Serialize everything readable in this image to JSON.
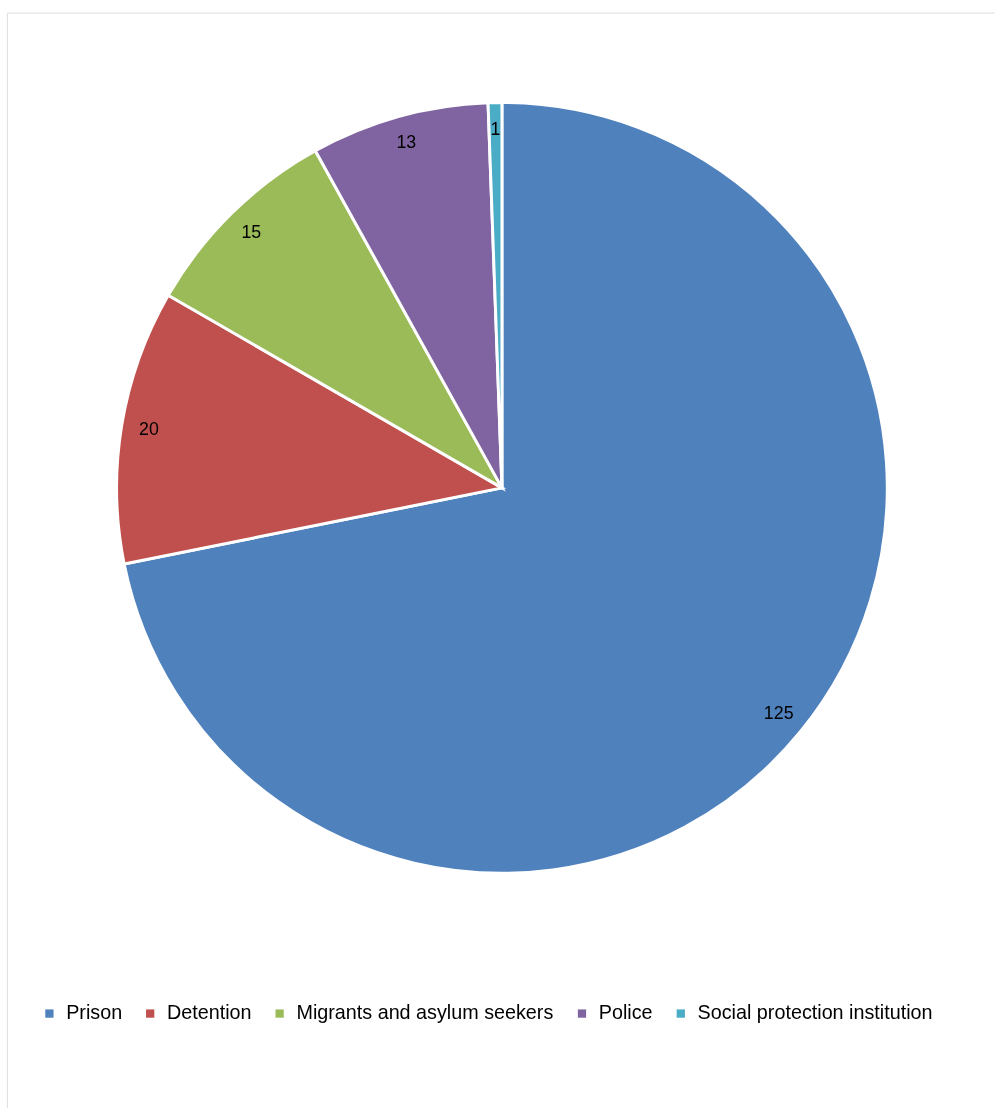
{
  "chart_data": {
    "type": "pie",
    "categories": [
      "Prison",
      "Detention",
      "Migrants and asylum seekers",
      "Police",
      "Social protection institution"
    ],
    "values": [
      125,
      20,
      15,
      13,
      1
    ],
    "colors": [
      "#4f81bd",
      "#c0504d",
      "#9bbb59",
      "#8064a2",
      "#4bacc6"
    ],
    "data_labels": true,
    "legend": "bottom"
  }
}
